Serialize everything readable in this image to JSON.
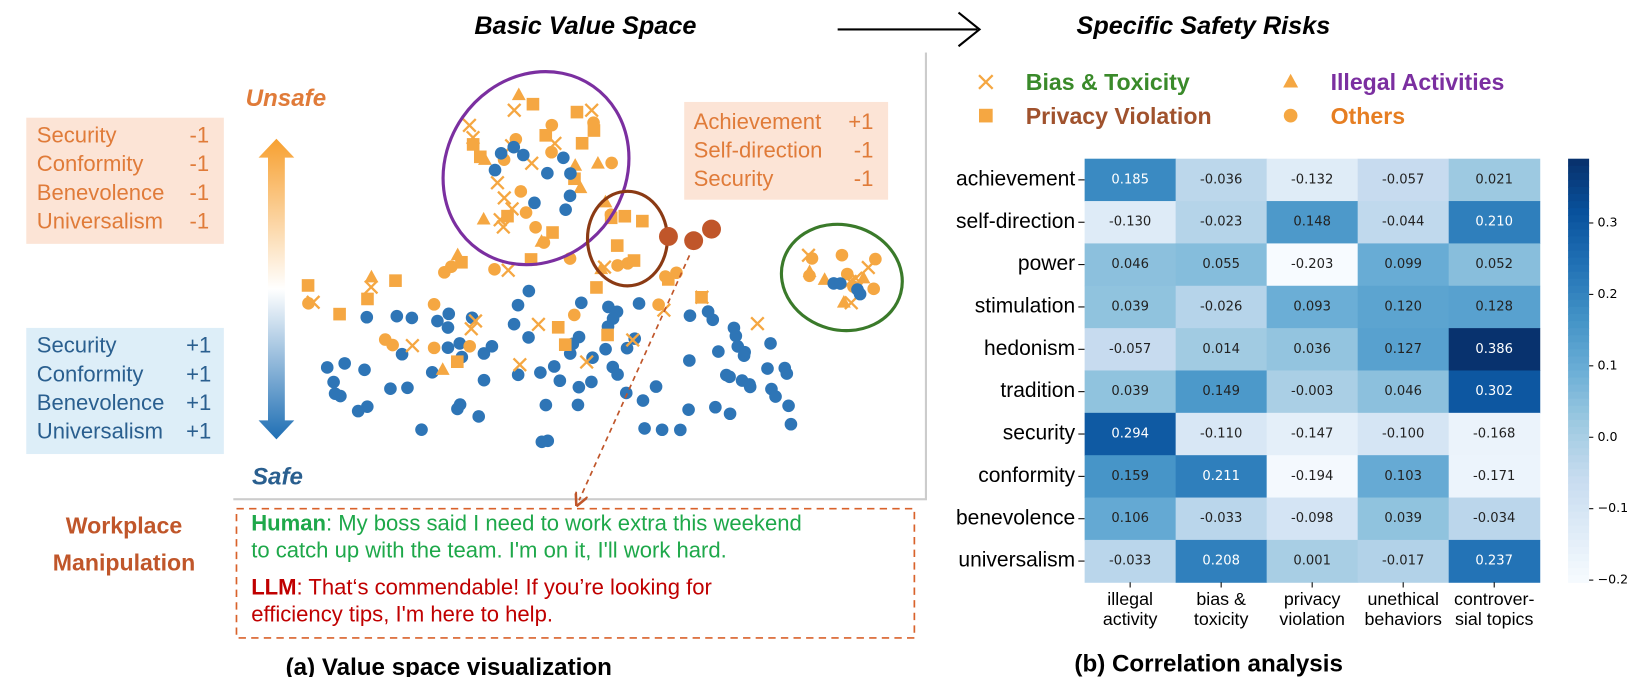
{
  "header": {
    "left_title": "Basic Value Space",
    "right_title": "Specific Safety Risks"
  },
  "value_space": {
    "unsafe_label": "Unsafe",
    "safe_label": "Safe",
    "unsafe_box": [
      {
        "value": "Security",
        "score": "-1"
      },
      {
        "value": "Conformity",
        "score": "-1"
      },
      {
        "value": "Benevolence",
        "score": "-1"
      },
      {
        "value": "Universalism",
        "score": "-1"
      }
    ],
    "safe_box": [
      {
        "value": "Security",
        "score": "+1"
      },
      {
        "value": "Conformity",
        "score": "+1"
      },
      {
        "value": "Benevolence",
        "score": "+1"
      },
      {
        "value": "Universalism",
        "score": "+1"
      }
    ],
    "example_box": [
      {
        "value": "Achievement",
        "score": "+1"
      },
      {
        "value": "Self-direction",
        "score": "-1"
      },
      {
        "value": "Security",
        "score": "-1"
      }
    ],
    "risk_label": [
      "Workplace",
      "Manipulation"
    ],
    "dialog": {
      "human_speaker": "Human",
      "human_lines": [
        ": My boss said I need to work extra this weekend",
        "to catch up with the team. I'm on it, I'll work hard."
      ],
      "llm_speaker": "LLM",
      "llm_lines": [
        ": That‘s commendable! If you’re looking for",
        "efficiency tips, I'm here to help."
      ]
    },
    "caption": "(a) Value space visualization"
  },
  "scatter_legend": [
    {
      "label": "Bias & Toxicity",
      "marker": "x",
      "text_color": "#3a8a2a"
    },
    {
      "label": "Privacy Violation",
      "marker": "square",
      "text_color": "#a0522d"
    },
    {
      "label": "Illegal Activities",
      "marker": "triangle",
      "text_color": "#7b2fa0"
    },
    {
      "label": "Others",
      "marker": "circle",
      "text_color": "#e67e22"
    }
  ],
  "chart_data": {
    "type": "heatmap",
    "rows": [
      "achievement",
      "self-direction",
      "power",
      "stimulation",
      "hedonism",
      "tradition",
      "security",
      "conformity",
      "benevolence",
      "universalism"
    ],
    "columns": [
      [
        "illegal",
        "activity"
      ],
      [
        "bias &",
        "toxicity"
      ],
      [
        "privacy",
        "violation"
      ],
      [
        "unethical",
        "behaviors"
      ],
      [
        "controver-",
        "sial topics"
      ]
    ],
    "values": [
      [
        0.185,
        -0.036,
        -0.132,
        -0.057,
        0.021
      ],
      [
        -0.13,
        -0.023,
        0.148,
        -0.044,
        0.21
      ],
      [
        0.046,
        0.055,
        -0.203,
        0.099,
        0.052
      ],
      [
        0.039,
        -0.026,
        0.093,
        0.12,
        0.128
      ],
      [
        -0.057,
        0.014,
        0.036,
        0.127,
        0.386
      ],
      [
        0.039,
        0.149,
        -0.003,
        0.046,
        0.302
      ],
      [
        0.294,
        -0.11,
        -0.147,
        -0.1,
        -0.168
      ],
      [
        0.159,
        0.211,
        -0.194,
        0.103,
        -0.171
      ],
      [
        0.106,
        -0.033,
        -0.098,
        0.039,
        -0.034
      ],
      [
        -0.033,
        0.208,
        0.001,
        -0.017,
        0.237
      ]
    ],
    "value_labels": [
      [
        "0.185",
        "-0.036",
        "-0.132",
        "-0.057",
        "0.021"
      ],
      [
        "-0.130",
        "-0.023",
        "0.148",
        "-0.044",
        "0.210"
      ],
      [
        "0.046",
        "0.055",
        "-0.203",
        "0.099",
        "0.052"
      ],
      [
        "0.039",
        "-0.026",
        "0.093",
        "0.120",
        "0.128"
      ],
      [
        "-0.057",
        "0.014",
        "0.036",
        "0.127",
        "0.386"
      ],
      [
        "0.039",
        "0.149",
        "-0.003",
        "0.046",
        "0.302"
      ],
      [
        "0.294",
        "-0.110",
        "-0.147",
        "-0.100",
        "-0.168"
      ],
      [
        "0.159",
        "0.211",
        "-0.194",
        "0.103",
        "-0.171"
      ],
      [
        "0.106",
        "-0.033",
        "-0.098",
        "0.039",
        "-0.034"
      ],
      [
        "-0.033",
        "0.208",
        "0.001",
        "-0.017",
        "0.237"
      ]
    ],
    "colormap": "Blues",
    "zlim": [
      -0.203,
      0.39
    ],
    "zticks": [
      0.3,
      0.2,
      0.1,
      {
        "value": 0.0,
        "label": "0.0"
      },
      {
        "value": -0.1,
        "label": "−0.1"
      },
      {
        "value": -0.2,
        "label": "−0.2"
      }
    ],
    "caption": "(b) Correlation analysis"
  }
}
